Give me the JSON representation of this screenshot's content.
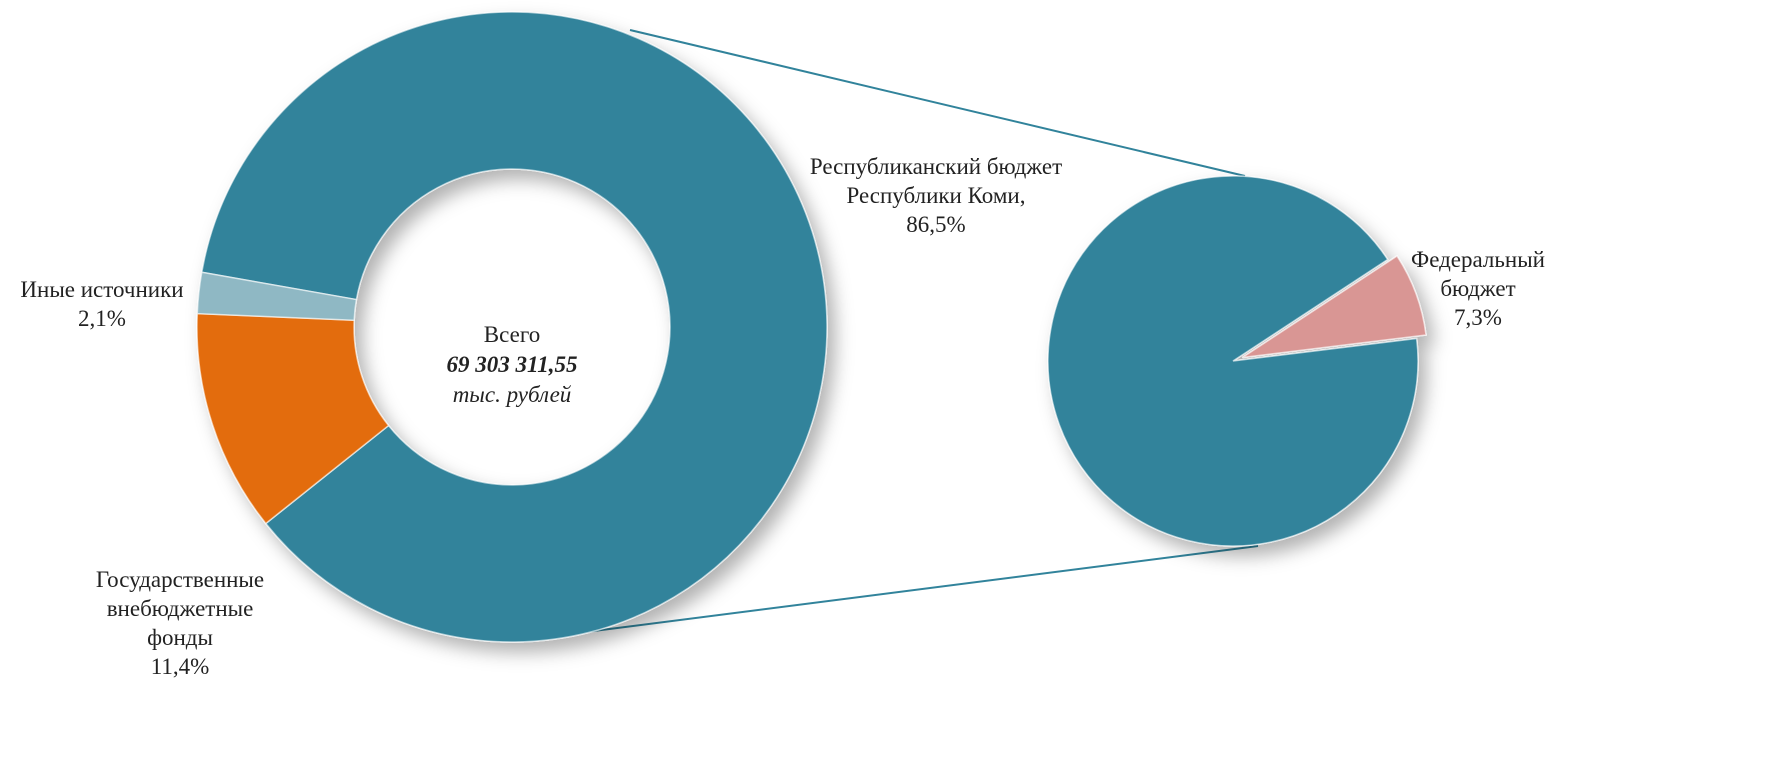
{
  "chart_data": [
    {
      "type": "donut",
      "categories": [
        "Республиканский бюджет Республики Коми,",
        "Государственные внебюджетные фонды",
        "Иные источники"
      ],
      "values": [
        86.5,
        11.4,
        2.1
      ],
      "value_labels": [
        "86,5%",
        "11,4%",
        "2,1%"
      ],
      "colors": [
        "#31839b",
        "#e36c0a",
        "#8fb8c4"
      ],
      "center_title": "Всего",
      "center_value": "69 303 311,55",
      "center_unit": "тыс. рублей"
    },
    {
      "type": "pie",
      "categories": [
        null,
        "Федеральный бюджет"
      ],
      "values": [
        92.7,
        7.3
      ],
      "value_labels": [
        null,
        "7,3%"
      ],
      "colors": [
        "#31839b",
        "#d99694"
      ]
    }
  ]
}
